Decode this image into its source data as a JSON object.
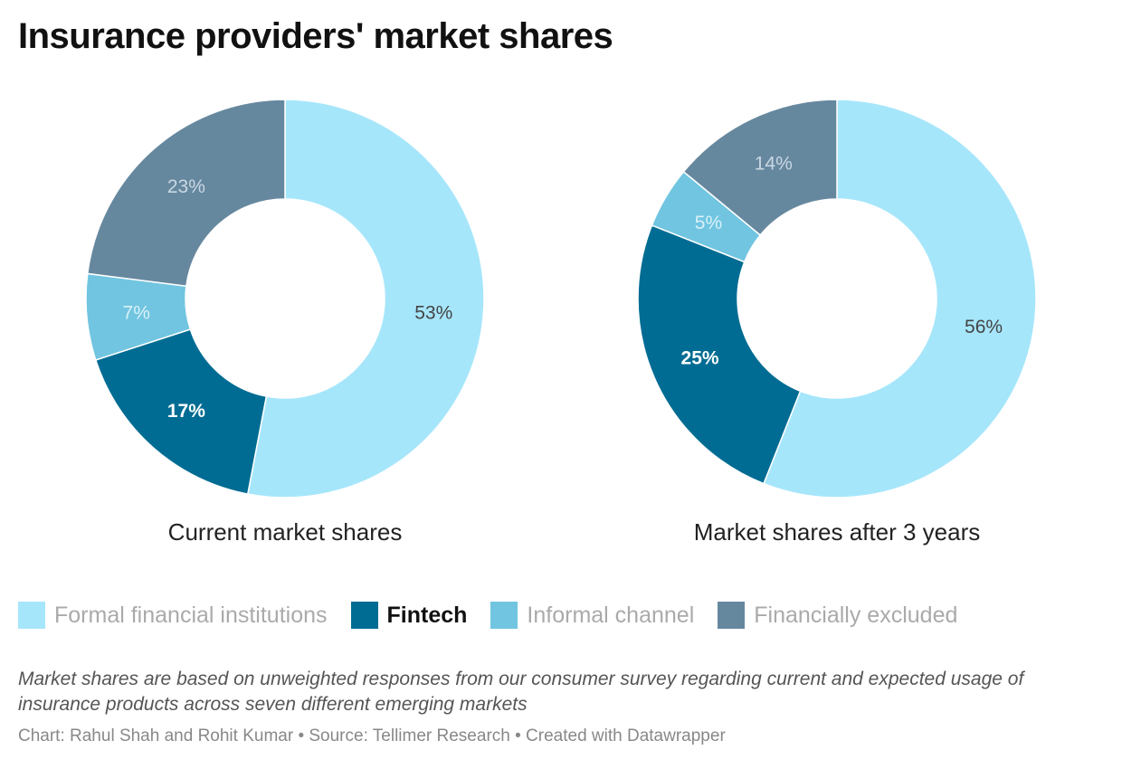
{
  "title": "Insurance providers' market shares",
  "chart_data": [
    {
      "type": "pie",
      "subtitle": "Current market shares",
      "categories": [
        "Formal financial institutions",
        "Fintech",
        "Informal channel",
        "Financially excluded"
      ],
      "values": [
        53,
        17,
        7,
        23
      ],
      "labels": [
        "53%",
        "17%",
        "7%",
        "23%"
      ]
    },
    {
      "type": "pie",
      "subtitle": "Market shares after 3 years",
      "categories": [
        "Formal financial institutions",
        "Fintech",
        "Informal channel",
        "Financially excluded"
      ],
      "values": [
        56,
        25,
        5,
        14
      ],
      "labels": [
        "56%",
        "25%",
        "5%",
        "14%"
      ]
    }
  ],
  "legend": [
    {
      "label": "Formal financial institutions",
      "color": "#a6e6fb",
      "highlight": false
    },
    {
      "label": "Fintech",
      "color": "#006c93",
      "highlight": true
    },
    {
      "label": "Informal channel",
      "color": "#71c5e0",
      "highlight": false
    },
    {
      "label": "Financially excluded",
      "color": "#66889f",
      "highlight": false
    }
  ],
  "label_colors": [
    "#444444",
    "#ffffff",
    "#d9f1f9",
    "#c9d8e3"
  ],
  "note": "Market shares are based on unweighted responses from our consumer survey regarding current and expected usage of insurance products across seven different emerging markets",
  "footer": "Chart: Rahul Shah and Rohit Kumar • Source: Tellimer Research • Created with Datawrapper"
}
